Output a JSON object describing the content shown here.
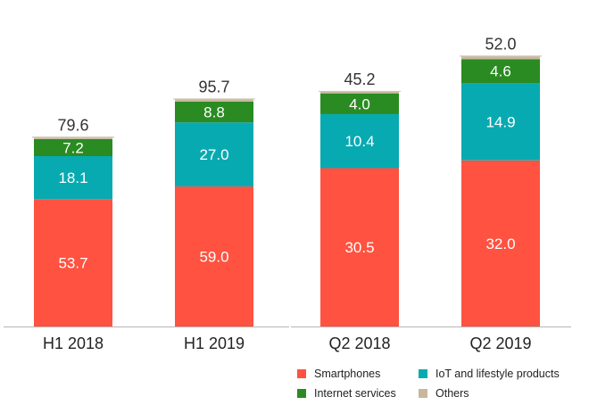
{
  "chart_data": {
    "type": "bar",
    "stacked": true,
    "title": "",
    "xlabel": "",
    "ylabel": "",
    "legend_position": "bottom-right",
    "groups": [
      {
        "categories": [
          "H1 2018",
          "H1 2019"
        ],
        "totals": [
          "79.6",
          "95.7"
        ],
        "series": [
          {
            "name": "Smartphones",
            "values": [
              53.7,
              59.0
            ],
            "labels": [
              "53.7",
              "59.0"
            ]
          },
          {
            "name": "IoT and lifestyle products",
            "values": [
              18.1,
              27.0
            ],
            "labels": [
              "18.1",
              "27.0"
            ]
          },
          {
            "name": "Internet services",
            "values": [
              7.2,
              8.8
            ],
            "labels": [
              "7.2",
              "8.8"
            ]
          },
          {
            "name": "Others",
            "values": [
              0.6,
              0.9
            ],
            "labels": [
              "",
              ""
            ]
          }
        ]
      },
      {
        "categories": [
          "Q2 2018",
          "Q2 2019"
        ],
        "totals": [
          "45.2",
          "52.0"
        ],
        "series": [
          {
            "name": "Smartphones",
            "values": [
              30.5,
              32.0
            ],
            "labels": [
              "30.5",
              "32.0"
            ]
          },
          {
            "name": "IoT and lifestyle products",
            "values": [
              10.4,
              14.9
            ],
            "labels": [
              "10.4",
              "14.9"
            ]
          },
          {
            "name": "Internet services",
            "values": [
              4.0,
              4.6
            ],
            "labels": [
              "4.0",
              "4.6"
            ]
          },
          {
            "name": "Others",
            "values": [
              0.3,
              0.5
            ],
            "labels": [
              "",
              ""
            ]
          }
        ]
      }
    ],
    "colors": {
      "Smartphones": "#ff5240",
      "IoT and lifestyle products": "#08aab1",
      "Internet services": "#2a8b22",
      "Others": "#c9b79c"
    },
    "legend": [
      "Smartphones",
      "IoT and lifestyle products",
      "Internet services",
      "Others"
    ]
  }
}
